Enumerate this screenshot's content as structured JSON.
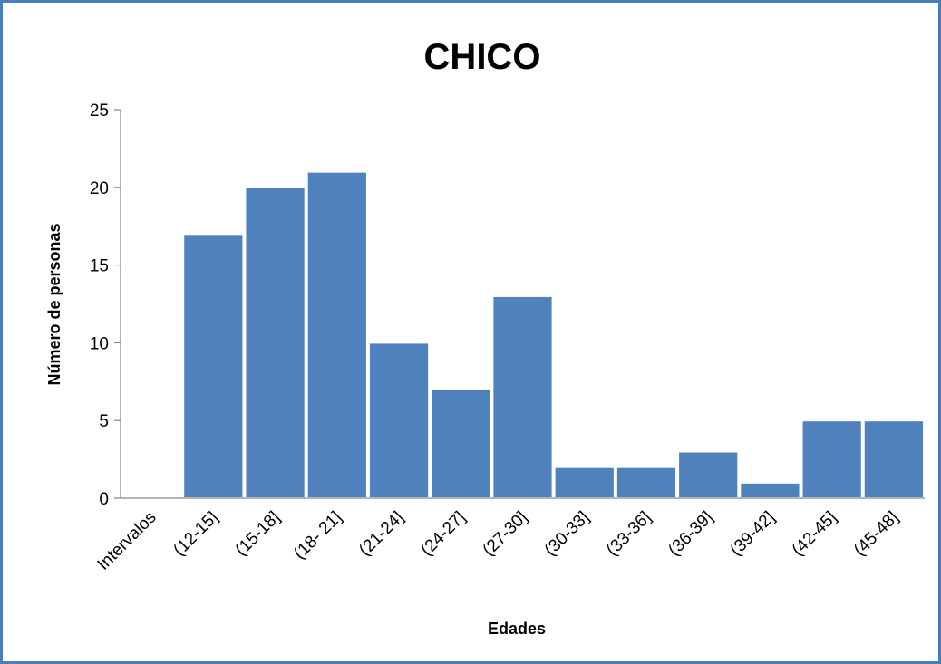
{
  "chart_data": {
    "type": "bar",
    "title": "CHICO",
    "xlabel": "Edades",
    "ylabel": "Número de personas",
    "categories": [
      "Intervalos",
      "(12-15]",
      "(15-18]",
      "(18- 21]",
      "(21-24]",
      "(24-27]",
      "(27-30]",
      "(30-33]",
      "(33-36]",
      "(36-39]",
      "(39-42]",
      "(42-45]",
      "(45-48]"
    ],
    "values": [
      null,
      17,
      20,
      21,
      10,
      7,
      13,
      2,
      2,
      3,
      1,
      5,
      5
    ],
    "ylim": [
      0,
      25
    ],
    "yticks": [
      "0",
      "5",
      "10",
      "15",
      "20",
      "25"
    ],
    "bar_color": "#4f81bd",
    "grid": false,
    "legend": "none"
  }
}
